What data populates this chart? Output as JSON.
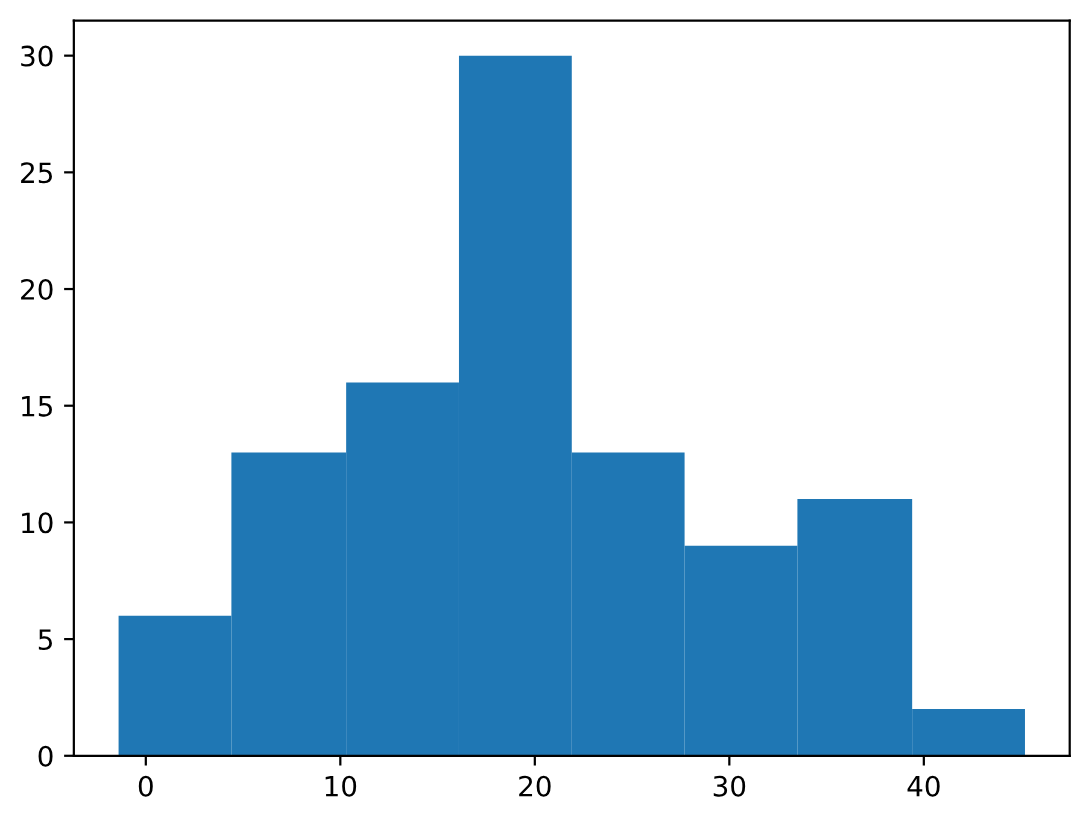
{
  "chart_data": {
    "type": "histogram",
    "bins": [
      -1.4,
      4.4,
      10.3,
      16.1,
      21.9,
      27.7,
      33.5,
      39.4,
      45.2
    ],
    "values": [
      6,
      13,
      16,
      30,
      13,
      9,
      11,
      2
    ],
    "color": "#1f77b4",
    "xlim": [
      -3.7,
      47.5
    ],
    "xticks": [
      0,
      10,
      20,
      30,
      40
    ],
    "ylim": [
      0,
      31.5
    ],
    "yticks": [
      0,
      5,
      10,
      15,
      20,
      25,
      30
    ],
    "grid": false
  }
}
